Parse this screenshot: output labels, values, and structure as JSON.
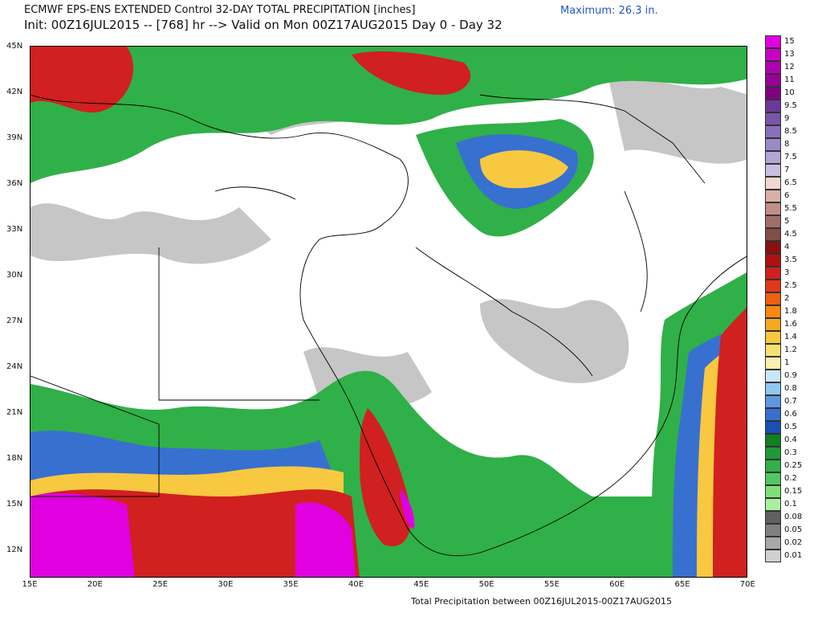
{
  "header": {
    "title_line1": "ECMWF EPS-ENS EXTENDED Control 32-DAY TOTAL PRECIPITATION [inches]",
    "title_line2": "Init: 00Z16JUL2015 -- [768] hr --> Valid on Mon 00Z17AUG2015  Day 0 - Day 32",
    "maximum_label": "Maximum:  26.3 in."
  },
  "footer": {
    "text": "Total Precipitation between 00Z16JUL2015-00Z17AUG2015"
  },
  "lat_labels": [
    "45N",
    "42N",
    "39N",
    "36N",
    "33N",
    "30N",
    "27N",
    "24N",
    "21N",
    "18N",
    "15N",
    "12N"
  ],
  "lon_labels": [
    "15E",
    "20E",
    "25E",
    "30E",
    "35E",
    "40E",
    "45E",
    "50E",
    "55E",
    "60E",
    "65E",
    "70E"
  ],
  "legend": {
    "labels": [
      "15",
      "13",
      "12",
      "11",
      "10",
      "9.5",
      "9",
      "8.5",
      "8",
      "7.5",
      "7",
      "6.5",
      "6",
      "5.5",
      "5",
      "4.5",
      "4",
      "3.5",
      "3",
      "2.5",
      "2",
      "1.8",
      "1.6",
      "1.4",
      "1.2",
      "1",
      "0.9",
      "0.8",
      "0.7",
      "0.6",
      "0.5",
      "0.4",
      "0.3",
      "0.25",
      "0.2",
      "0.15",
      "0.1",
      "0.08",
      "0.05",
      "0.02",
      "0.01"
    ],
    "colors": [
      "#e000e0",
      "#c800c8",
      "#b000b0",
      "#980098",
      "#800080",
      "#6a3a9a",
      "#7a55aa",
      "#8a70b8",
      "#9a8ac6",
      "#b2a6d4",
      "#cabfe0",
      "#f0d8d0",
      "#d8b0a8",
      "#c09088",
      "#a07068",
      "#805048",
      "#8a1010",
      "#b01010",
      "#d02020",
      "#e03818",
      "#f06010",
      "#f88810",
      "#f8a820",
      "#f8c840",
      "#f8e070",
      "#f8f0b0",
      "#c8e8f8",
      "#90c8f0",
      "#6098e0",
      "#3870d0",
      "#1850b8",
      "#108020",
      "#209838",
      "#30b048",
      "#50c860",
      "#80e078",
      "#a8f0a0",
      "#606060",
      "#808080",
      "#a8a8a8",
      "#d0d0d0",
      "#ffffff"
    ]
  }
}
